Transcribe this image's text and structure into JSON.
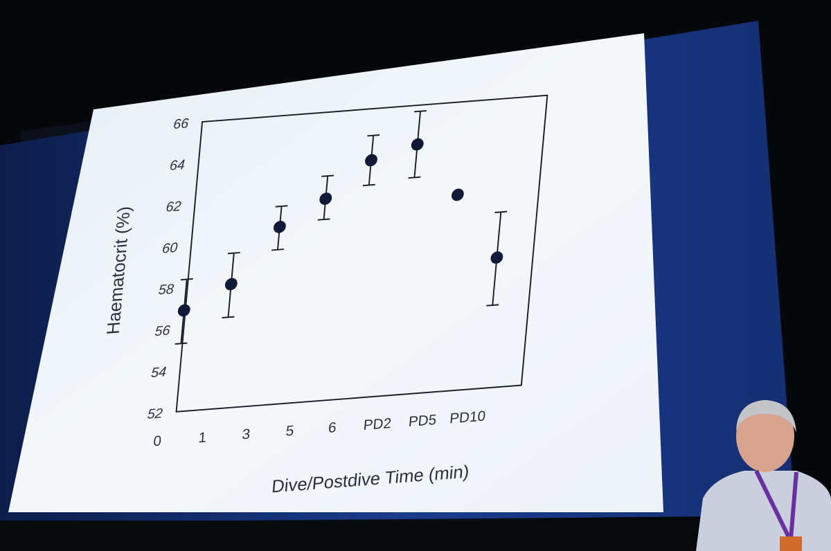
{
  "chart_data": {
    "type": "scatter",
    "title": "",
    "xlabel": "Dive/Postdive Time (min)",
    "ylabel": "Haematocrit (%)",
    "ylim": [
      52,
      66
    ],
    "yticks": [
      52,
      54,
      56,
      58,
      60,
      62,
      64,
      66
    ],
    "categories": [
      "0",
      "1",
      "3",
      "5",
      "6",
      "PD2",
      "PD5",
      "PD10"
    ],
    "series": [
      {
        "points": [
          {
            "y": 56.9,
            "err_low": 55.3,
            "err_high": 58.4
          },
          {
            "y": 58.0,
            "err_low": 56.4,
            "err_high": 59.5
          },
          {
            "y": 60.6,
            "err_low": 59.5,
            "err_high": 61.6
          },
          {
            "y": 61.8,
            "err_low": 60.8,
            "err_high": 62.9
          },
          {
            "y": 63.5,
            "err_low": 62.3,
            "err_high": 64.7
          },
          {
            "y": 64.1,
            "err_low": 62.5,
            "err_high": 65.7
          },
          {
            "y": 61.5
          },
          {
            "y": 58.3,
            "err_low": 56.0,
            "err_high": 60.5
          }
        ]
      }
    ],
    "colors": {
      "marker": "#101a38",
      "axis": "#1a1f2a",
      "text": "#2a3040"
    }
  }
}
